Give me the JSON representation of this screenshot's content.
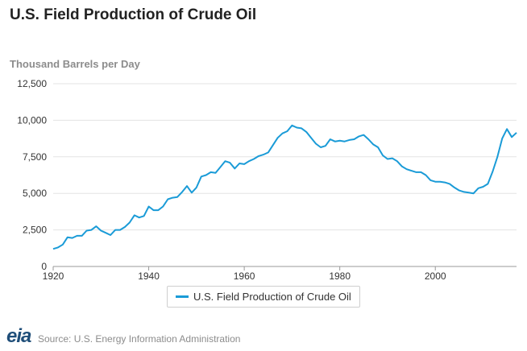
{
  "title": "U.S. Field Production of Crude Oil",
  "source": "Source: U.S. Energy Information Administration",
  "logo_text": "eia",
  "chart_data": {
    "type": "line",
    "title": "U.S. Field Production of Crude Oil",
    "ylabel": "Thousand Barrels per Day",
    "xlabel": "",
    "xlim": [
      1920,
      2017
    ],
    "ylim": [
      0,
      12500
    ],
    "xticks": [
      1920,
      1940,
      1960,
      1980,
      2000
    ],
    "xtick_labels": [
      "1920",
      "1940",
      "1960",
      "1980",
      "2000"
    ],
    "yticks": [
      0,
      2500,
      5000,
      7500,
      10000,
      12500
    ],
    "ytick_labels": [
      "0",
      "2,500",
      "5,000",
      "7,500",
      "10,000",
      "12,500"
    ],
    "grid": true,
    "legend_position": "bottom-center",
    "color": "#1a9bd7",
    "series": [
      {
        "name": "U.S. Field Production of Crude Oil",
        "x": [
          1920,
          1921,
          1922,
          1923,
          1924,
          1925,
          1926,
          1927,
          1928,
          1929,
          1930,
          1931,
          1932,
          1933,
          1934,
          1935,
          1936,
          1937,
          1938,
          1939,
          1940,
          1941,
          1942,
          1943,
          1944,
          1945,
          1946,
          1947,
          1948,
          1949,
          1950,
          1951,
          1952,
          1953,
          1954,
          1955,
          1956,
          1957,
          1958,
          1959,
          1960,
          1961,
          1962,
          1963,
          1964,
          1965,
          1966,
          1967,
          1968,
          1969,
          1970,
          1971,
          1972,
          1973,
          1974,
          1975,
          1976,
          1977,
          1978,
          1979,
          1980,
          1981,
          1982,
          1983,
          1984,
          1985,
          1986,
          1987,
          1988,
          1989,
          1990,
          1991,
          1992,
          1993,
          1994,
          1995,
          1996,
          1997,
          1998,
          1999,
          2000,
          2001,
          2002,
          2003,
          2004,
          2005,
          2006,
          2007,
          2008,
          2009,
          2010,
          2011,
          2012,
          2013,
          2014,
          2015,
          2016,
          2017
        ],
        "values": [
          1200,
          1300,
          1500,
          2000,
          1950,
          2100,
          2100,
          2450,
          2500,
          2750,
          2450,
          2300,
          2150,
          2500,
          2500,
          2700,
          3000,
          3500,
          3350,
          3450,
          4100,
          3850,
          3850,
          4100,
          4600,
          4700,
          4750,
          5100,
          5500,
          5050,
          5400,
          6150,
          6250,
          6450,
          6400,
          6800,
          7200,
          7100,
          6700,
          7050,
          7000,
          7200,
          7350,
          7550,
          7650,
          7800,
          8300,
          8800,
          9100,
          9250,
          9650,
          9500,
          9450,
          9200,
          8800,
          8400,
          8150,
          8250,
          8700,
          8550,
          8600,
          8550,
          8650,
          8700,
          8900,
          9000,
          8700,
          8350,
          8150,
          7600,
          7350,
          7400,
          7200,
          6850,
          6650,
          6550,
          6450,
          6450,
          6250,
          5900,
          5800,
          5800,
          5750,
          5650,
          5400,
          5200,
          5100,
          5050,
          5000,
          5350,
          5450,
          5650,
          6500,
          7500,
          8750,
          9400,
          8850,
          9150
        ]
      }
    ]
  }
}
